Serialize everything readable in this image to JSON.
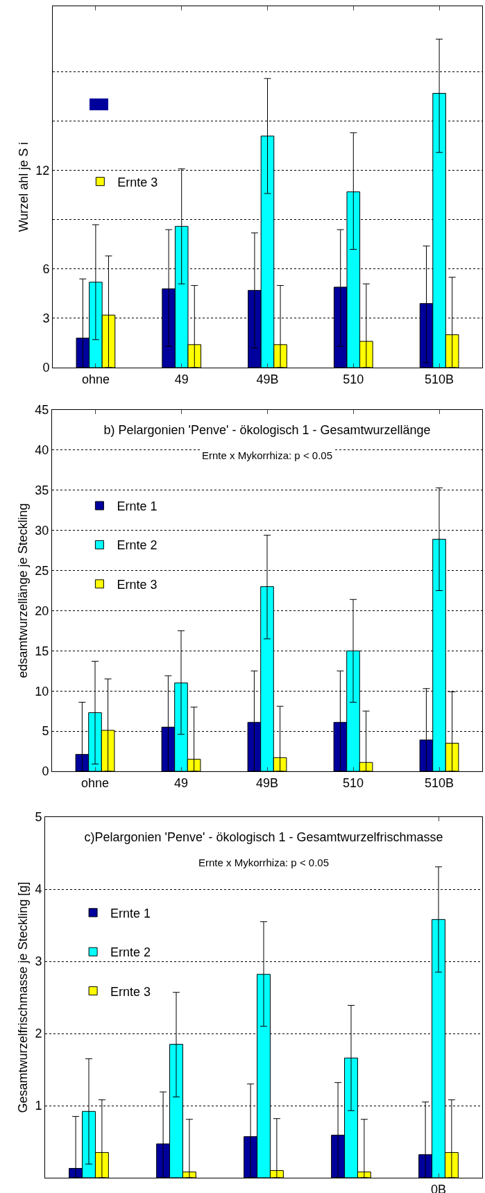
{
  "chart_data": [
    {
      "type": "bar",
      "ylabel": "Wurzel ahl je S i",
      "categories": [
        "ohne",
        "49",
        "49B",
        "510",
        "510B"
      ],
      "ylim": [
        0,
        22
      ],
      "yticks": [
        0,
        3,
        6,
        {
          "value": 9,
          "label": null
        },
        12,
        {
          "value": 15,
          "label": null
        },
        {
          "value": 18,
          "label": null
        }
      ],
      "grid": "y",
      "legend": "top left",
      "series": [
        {
          "color": "#00009c",
          "values": [
            1.8,
            4.8,
            4.7,
            4.9,
            3.9
          ],
          "errors": [
            [
              0,
              5.4
            ],
            [
              1.3,
              8.4
            ],
            [
              1.2,
              8.2
            ],
            [
              1.3,
              8.4
            ],
            [
              0.3,
              7.4
            ]
          ]
        },
        {
          "color": "#00ffff",
          "values": [
            5.2,
            8.6,
            14.1,
            10.7,
            16.7
          ],
          "errors": [
            [
              1.7,
              8.7
            ],
            [
              5.1,
              12.1
            ],
            [
              10.6,
              17.6
            ],
            [
              7.2,
              14.3
            ],
            [
              13.1,
              20.0
            ]
          ]
        },
        {
          "name": "Ernte 3",
          "color": "#ffff00",
          "values": [
            3.2,
            1.4,
            1.4,
            1.6,
            2.0
          ],
          "errors": [
            [
              0,
              6.8
            ],
            [
              0,
              5.0
            ],
            [
              0,
              5.0
            ],
            [
              0,
              5.1
            ],
            [
              0,
              5.5
            ]
          ]
        }
      ]
    },
    {
      "type": "bar",
      "title": "b) Pelargonien 'Penve' - ökologisch 1 - Gesamtwurzellänge",
      "subtitle": "Ernte x Mykorrhiza: p < 0.05",
      "ylabel": "edsamtwurzellänge je Steckling",
      "categories": [
        "ohne",
        "49",
        "49B",
        "510",
        "510B"
      ],
      "ylim": [
        0,
        45
      ],
      "yticks": [
        0,
        5,
        10,
        15,
        20,
        25,
        30,
        35,
        40,
        45
      ],
      "grid": "y",
      "legend": "top left",
      "series": [
        {
          "name": "Ernte 1",
          "color": "#00009c",
          "values": [
            2.1,
            5.5,
            6.1,
            6.1,
            3.9
          ],
          "errors": [
            [
              0,
              8.6
            ],
            [
              0,
              11.9
            ],
            [
              0,
              12.5
            ],
            [
              0,
              12.5
            ],
            [
              0,
              10.3
            ]
          ]
        },
        {
          "name": "Ernte 2",
          "color": "#00ffff",
          "values": [
            7.3,
            11.0,
            23.0,
            15.0,
            28.9
          ],
          "errors": [
            [
              0.9,
              13.7
            ],
            [
              4.6,
              17.5
            ],
            [
              16.5,
              29.4
            ],
            [
              8.6,
              21.4
            ],
            [
              22.5,
              35.3
            ]
          ]
        },
        {
          "name": "Ernte 3",
          "color": "#ffff00",
          "values": [
            5.1,
            1.5,
            1.7,
            1.1,
            3.5
          ],
          "errors": [
            [
              0,
              11.5
            ],
            [
              0,
              8.0
            ],
            [
              0,
              8.1
            ],
            [
              0,
              7.5
            ],
            [
              0,
              9.9
            ]
          ]
        }
      ]
    },
    {
      "type": "bar",
      "title": "c)Pelargonien 'Penve' - ökologisch 1 - Gesamtwurzelfrischmasse",
      "subtitle": "Ernte x Mykorrhiza: p < 0.05",
      "ylabel": "Gesamtwurzelfrischmasse je Steckling [g]",
      "categories": [
        null,
        null,
        null,
        null,
        "0B"
      ],
      "ylim": [
        0,
        5
      ],
      "yticks": [
        1,
        2,
        3,
        4,
        5
      ],
      "grid": "y",
      "legend": "top left",
      "series": [
        {
          "name": "Ernte 1",
          "color": "#00009c",
          "values": [
            0.13,
            0.47,
            0.57,
            0.59,
            0.32
          ],
          "errors": [
            [
              0,
              0.85
            ],
            [
              0,
              1.19
            ],
            [
              0,
              1.3
            ],
            [
              0,
              1.32
            ],
            [
              0,
              1.05
            ]
          ]
        },
        {
          "name": "Ernte 2",
          "color": "#00ffff",
          "values": [
            0.92,
            1.85,
            2.82,
            1.66,
            3.58
          ],
          "errors": [
            [
              0.19,
              1.65
            ],
            [
              1.12,
              2.57
            ],
            [
              2.1,
              3.55
            ],
            [
              0.93,
              2.39
            ],
            [
              2.85,
              4.31
            ]
          ]
        },
        {
          "name": "Ernte 3",
          "color": "#ffff00",
          "values": [
            0.35,
            0.08,
            0.1,
            0.08,
            0.35
          ],
          "errors": [
            [
              0,
              1.08
            ],
            [
              0,
              0.81
            ],
            [
              0,
              0.82
            ],
            [
              0,
              0.81
            ],
            [
              0,
              1.08
            ]
          ]
        }
      ]
    }
  ]
}
